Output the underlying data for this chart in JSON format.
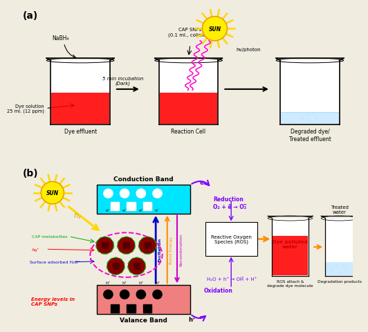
{
  "bg_color": "#f0ece0",
  "panel_a_label": "(a)",
  "panel_b_label": "(b)",
  "beaker1_label": "Dye effluent",
  "beaker2_label": "Reaction Cell",
  "beaker3_label": "Degraded dye/\nTreated effluent",
  "beaker1_annotation1": "NaBH₄",
  "beaker1_annotation2": "Dye solution\n25 ml. (12 ppm)",
  "beaker2_annotation": "CAP SNPs\n(0.1 ml., colloidal)",
  "arrow1_label": "5 min incubation\n(Dark)",
  "sun_label": "SUN",
  "photon_label": "hv/photon",
  "conduction_band_label": "Conduction Band",
  "valance_band_label": "Valance Band",
  "cb_color": "#00e5ff",
  "vb_color": "#f08080",
  "reduction_text": "Reduction\nO₂ + e̅ → O₂̅",
  "oxidation_text": "H₂O + h⁺ → OH̅ + H⁺",
  "oxidation_label": "Oxidation",
  "ros_text": "Reactive Oxygen\nSpecies (ROS)",
  "beaker4_label": "Dye polluted\nwater",
  "beaker5_label": "Treated\nwater",
  "beaker4_annotation": "ROS attach &\ndegrade dye molecule",
  "beaker5_annotation": "Degradation products",
  "energy_levels_text": "Energy levels in\nCAP SNPs",
  "cap_metabolites": "CAP metabolites",
  "ag_label": "Ag⁺",
  "surface_h2o": "Surface adsorbed H₂O⁻",
  "excitation_label": "Excitation",
  "band_energy_label": "Band Energy",
  "recombination_label": "Recombination",
  "sun_ray_color": "#ffd700",
  "sun_body_color": "#ffee00",
  "hv_arrow_color": "#ffd700",
  "e_arrow_color": "#7b00ff",
  "h_arrow_color": "#7b00ff",
  "ros_arrow_color": "#ff8c00",
  "beaker4_text_color": "#cc0000",
  "magenta_arrow": "#ff00ff",
  "excitation_color": "#0000cc",
  "band_energy_color": "#ff8c00",
  "recom_color": "#cc00cc"
}
